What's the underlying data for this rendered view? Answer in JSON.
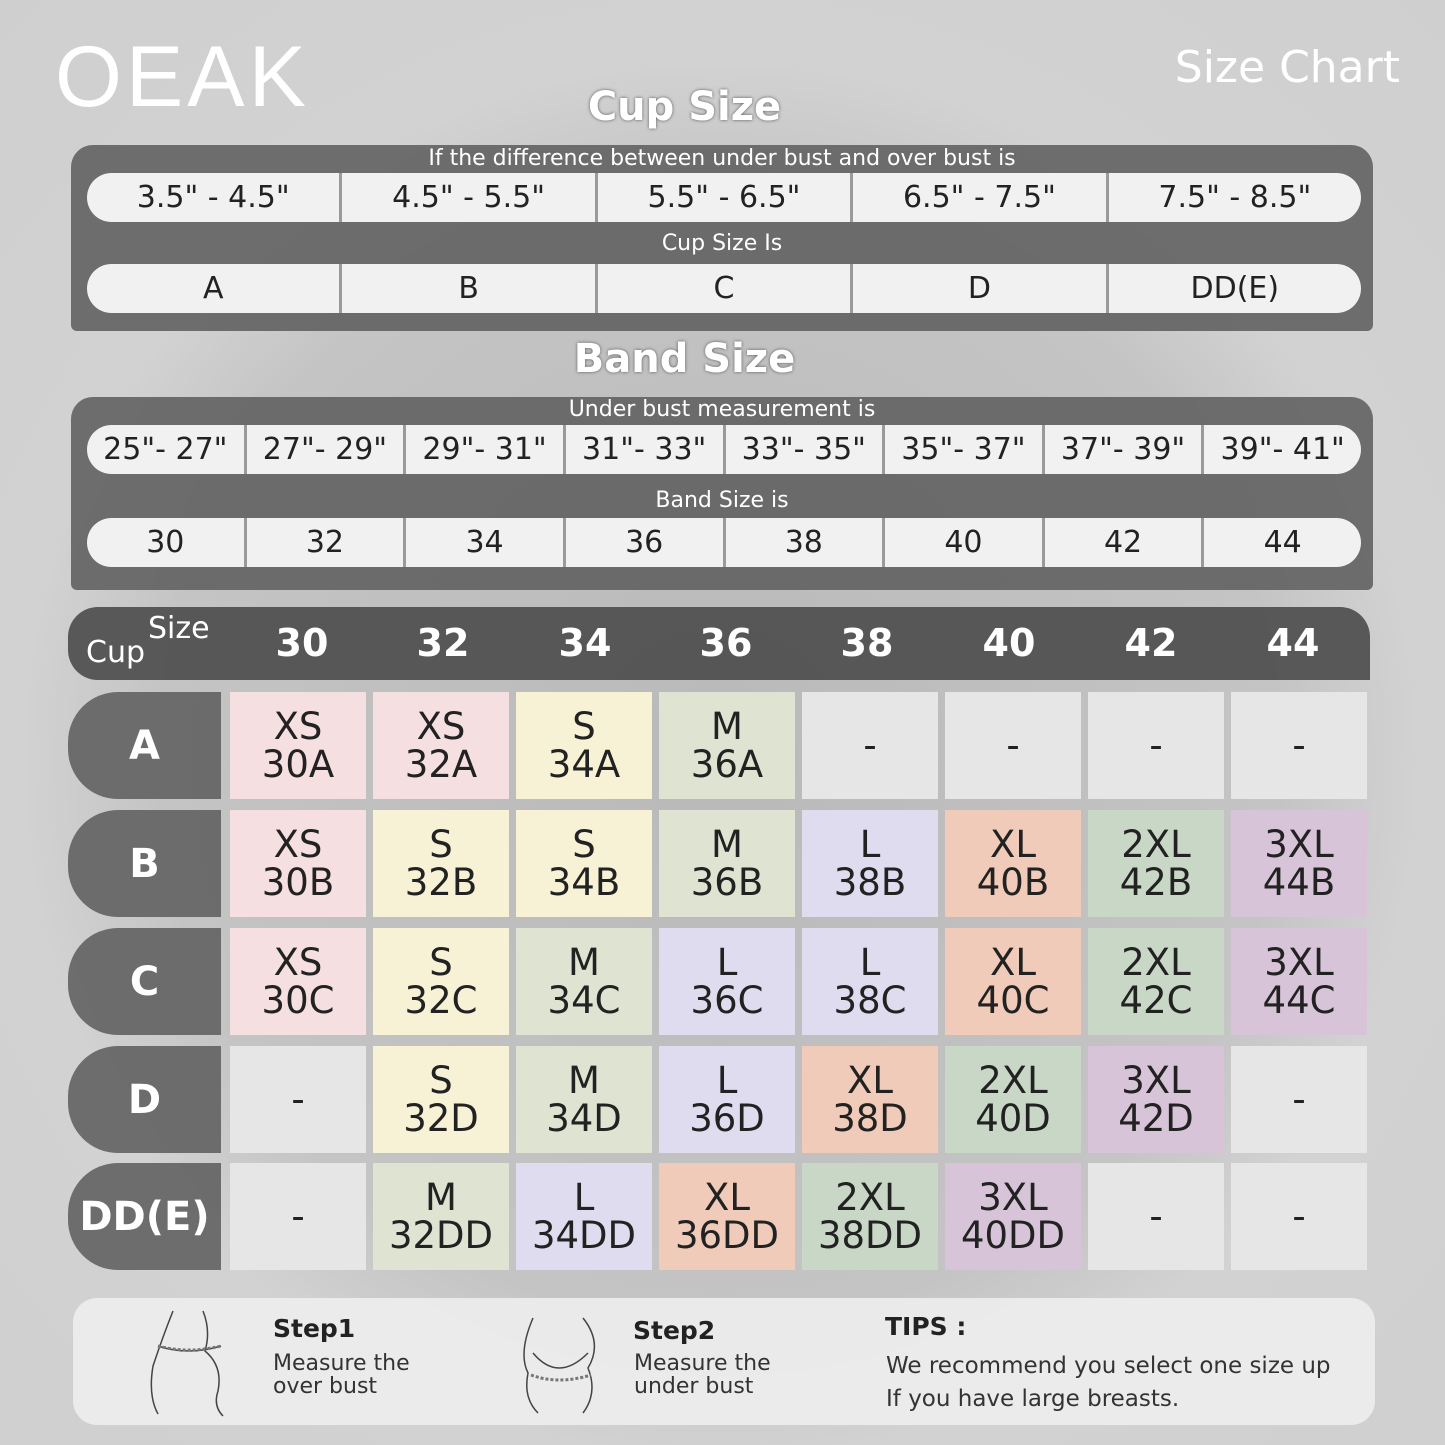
{
  "brand": "OEAK",
  "title": "Size Chart",
  "cup_section": {
    "heading": "Cup Size",
    "diff_label": "If the  difference between under bust and over bust is",
    "diffs": [
      "3.5\" -  4.5\"",
      "4.5\" -  5.5\"",
      "5.5\" -  6.5\"",
      "6.5\" -  7.5\"",
      "7.5\" -  8.5\""
    ],
    "cup_label": "Cup Size Is",
    "cups": [
      "A",
      "B",
      "C",
      "D",
      "DD(E)"
    ]
  },
  "band_section": {
    "heading": "Band Size",
    "under_label": "Under bust measurement is",
    "ranges": [
      "25\"- 27\"",
      "27\"- 29\"",
      "29\"- 31\"",
      "31\"- 33\"",
      "33\"- 35\"",
      "35\"- 37\"",
      "37\"- 39\"",
      "39\"- 41\""
    ],
    "band_label": "Band Size is",
    "bands": [
      "30",
      "32",
      "34",
      "36",
      "38",
      "40",
      "42",
      "44"
    ]
  },
  "table": {
    "size_label": "Size",
    "cup_label": "Cup",
    "columns": [
      "30",
      "32",
      "34",
      "36",
      "38",
      "40",
      "42",
      "44"
    ],
    "colors": {
      "XS": "#f6dfe0",
      "S": "#f7f1d6",
      "M": "#dfe4d2",
      "L": "#e0dcef",
      "XL": "#f1cbb9",
      "2XL": "#c9d7c6",
      "3XL": "#d8c4d8",
      "-": "#e6e6e6"
    },
    "rows": [
      {
        "cup": "A",
        "cells": [
          [
            "XS",
            "30A"
          ],
          [
            "XS",
            "32A"
          ],
          [
            "S",
            "34A"
          ],
          [
            "M",
            "36A"
          ],
          [
            "-",
            ""
          ],
          [
            "-",
            ""
          ],
          [
            "-",
            ""
          ],
          [
            "-",
            ""
          ]
        ]
      },
      {
        "cup": "B",
        "cells": [
          [
            "XS",
            "30B"
          ],
          [
            "S",
            "32B"
          ],
          [
            "S",
            "34B"
          ],
          [
            "M",
            "36B"
          ],
          [
            "L",
            "38B"
          ],
          [
            "XL",
            "40B"
          ],
          [
            "2XL",
            "42B"
          ],
          [
            "3XL",
            "44B"
          ]
        ]
      },
      {
        "cup": "C",
        "cells": [
          [
            "XS",
            "30C"
          ],
          [
            "S",
            "32C"
          ],
          [
            "M",
            "34C"
          ],
          [
            "L",
            "36C"
          ],
          [
            "L",
            "38C"
          ],
          [
            "XL",
            "40C"
          ],
          [
            "2XL",
            "42C"
          ],
          [
            "3XL",
            "44C"
          ]
        ]
      },
      {
        "cup": "D",
        "cells": [
          [
            "-",
            ""
          ],
          [
            "S",
            "32D"
          ],
          [
            "M",
            "34D"
          ],
          [
            "L",
            "36D"
          ],
          [
            "XL",
            "38D"
          ],
          [
            "2XL",
            "40D"
          ],
          [
            "3XL",
            "42D"
          ],
          [
            "-",
            ""
          ]
        ]
      },
      {
        "cup": "DD(E)",
        "cells": [
          [
            "-",
            ""
          ],
          [
            "M",
            "32DD"
          ],
          [
            "L",
            "34DD"
          ],
          [
            "XL",
            "36DD"
          ],
          [
            "2XL",
            "38DD"
          ],
          [
            "3XL",
            "40DD"
          ],
          [
            "-",
            ""
          ],
          [
            "-",
            ""
          ]
        ]
      }
    ]
  },
  "steps": [
    {
      "title": "Step1",
      "desc": "Measure the over bust"
    },
    {
      "title": "Step2",
      "desc": "Measure the under bust"
    }
  ],
  "tips": {
    "title": "TIPS :",
    "line1": "We recommend you select one size up",
    "line2": "If you have large breasts."
  }
}
